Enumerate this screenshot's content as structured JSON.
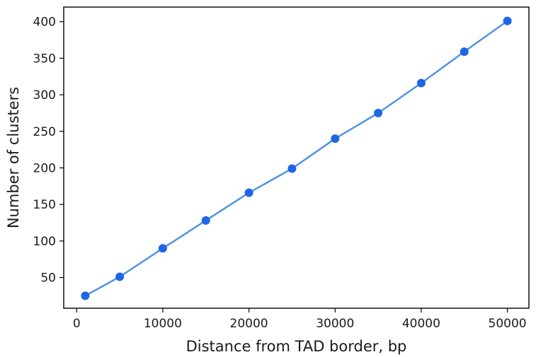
{
  "chart_data": {
    "type": "line",
    "title": "",
    "xlabel": "Distance from TAD border, bp",
    "ylabel": "Number of clusters",
    "xlim": [
      -1500,
      52500
    ],
    "ylim": [
      8,
      420
    ],
    "xticks": [
      0,
      10000,
      20000,
      30000,
      40000,
      50000
    ],
    "yticks": [
      50,
      100,
      150,
      200,
      250,
      300,
      350,
      400
    ],
    "grid": false,
    "legend": "none",
    "series": [
      {
        "x": [
          1000,
          5000,
          10000,
          15000,
          20000,
          25000,
          30000,
          35000,
          40000,
          45000,
          50000
        ],
        "y": [
          25,
          51,
          90,
          128,
          166,
          199,
          240,
          275,
          316,
          359,
          401
        ],
        "line_color": "#4a90e2",
        "marker_color": "#1f66e5",
        "marker": "circle"
      }
    ]
  }
}
